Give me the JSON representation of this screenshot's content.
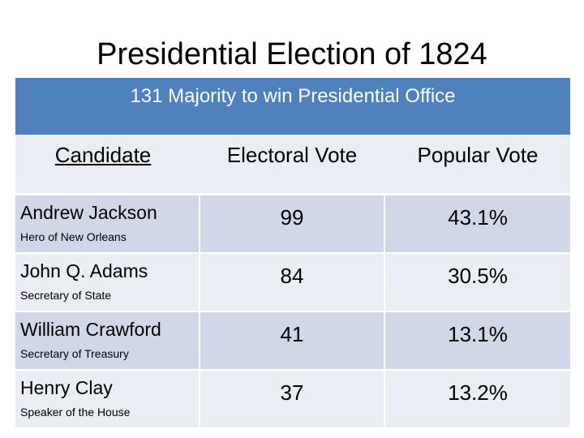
{
  "slide": {
    "title": "Presidential Election of 1824"
  },
  "table": {
    "banner": "131 Majority to win Presidential Office",
    "columns": [
      "Candidate",
      "Electoral Vote",
      "Popular Vote"
    ],
    "rows": [
      {
        "name": "Andrew Jackson",
        "role": "Hero of New Orleans",
        "electoral": "99",
        "popular": "43.1%"
      },
      {
        "name": "John Q. Adams",
        "role": "Secretary of State",
        "electoral": "84",
        "popular": "30.5%"
      },
      {
        "name": "William Crawford",
        "role": "Secretary of Treasury",
        "electoral": "41",
        "popular": "13.1%"
      },
      {
        "name": "Henry Clay",
        "role": "Speaker of the House",
        "electoral": "37",
        "popular": "13.2%"
      }
    ]
  },
  "colors": {
    "banner": "#4f81bd",
    "row_dark": "#d0d8e8",
    "row_light": "#e9edf4"
  }
}
